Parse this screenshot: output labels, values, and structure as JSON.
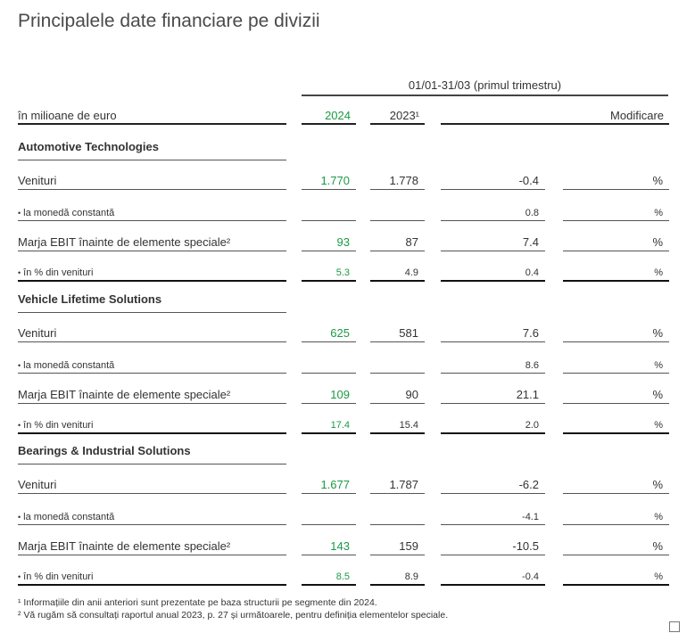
{
  "title": "Principalele date financiare pe divizii",
  "period": "01/01-31/03 (primul trimestru)",
  "header": {
    "unit_label": "în milioane de euro",
    "col_2024": "2024",
    "col_2023": "2023¹",
    "col_change": "Modificare"
  },
  "bullet": "•",
  "sections": [
    {
      "name": "Automotive Technologies",
      "rows": [
        {
          "label": "Venituri",
          "v2024": "1.770",
          "v2023": "1.778",
          "change": "-0.4",
          "pct": "%"
        },
        {
          "label": "la monedă constantă",
          "v2024": "",
          "v2023": "",
          "change": "0.8",
          "pct": "%"
        },
        {
          "label": "Marja EBIT înainte de elemente speciale²",
          "v2024": "93",
          "v2023": "87",
          "change": "7.4",
          "pct": "%"
        },
        {
          "label": "în % din venituri",
          "v2024": "5.3",
          "v2023": "4.9",
          "change": "0.4",
          "pct": "%"
        }
      ]
    },
    {
      "name": "Vehicle Lifetime Solutions",
      "rows": [
        {
          "label": "Venituri",
          "v2024": "625",
          "v2023": "581",
          "change": "7.6",
          "pct": "%"
        },
        {
          "label": "la monedă constantă",
          "v2024": "",
          "v2023": "",
          "change": "8.6",
          "pct": "%"
        },
        {
          "label": "Marja EBIT înainte de elemente speciale²",
          "v2024": "109",
          "v2023": "90",
          "change": "21.1",
          "pct": "%"
        },
        {
          "label": "în % din venituri",
          "v2024": "17.4",
          "v2023": "15.4",
          "change": "2.0",
          "pct": "%"
        }
      ]
    },
    {
      "name": "Bearings & Industrial Solutions",
      "rows": [
        {
          "label": "Venituri",
          "v2024": "1.677",
          "v2023": "1.787",
          "change": "-6.2",
          "pct": "%"
        },
        {
          "label": "la monedă constantă",
          "v2024": "",
          "v2023": "",
          "change": "-4.1",
          "pct": "%"
        },
        {
          "label": "Marja EBIT înainte de elemente speciale²",
          "v2024": "143",
          "v2023": "159",
          "change": "-10.5",
          "pct": "%"
        },
        {
          "label": "în % din venituri",
          "v2024": "8.5",
          "v2023": "8.9",
          "change": "-0.4",
          "pct": "%"
        }
      ]
    }
  ],
  "footnotes": [
    "¹ Informațiile din anii anteriori sunt prezentate pe baza structurii pe segmente din 2024.",
    "² Vă rugăm să consultați raportul anual 2023, p. 27 și următoarele, pentru definiția elementelor speciale."
  ],
  "colors": {
    "accent_2024": "#1a9a45",
    "text": "#333333"
  }
}
